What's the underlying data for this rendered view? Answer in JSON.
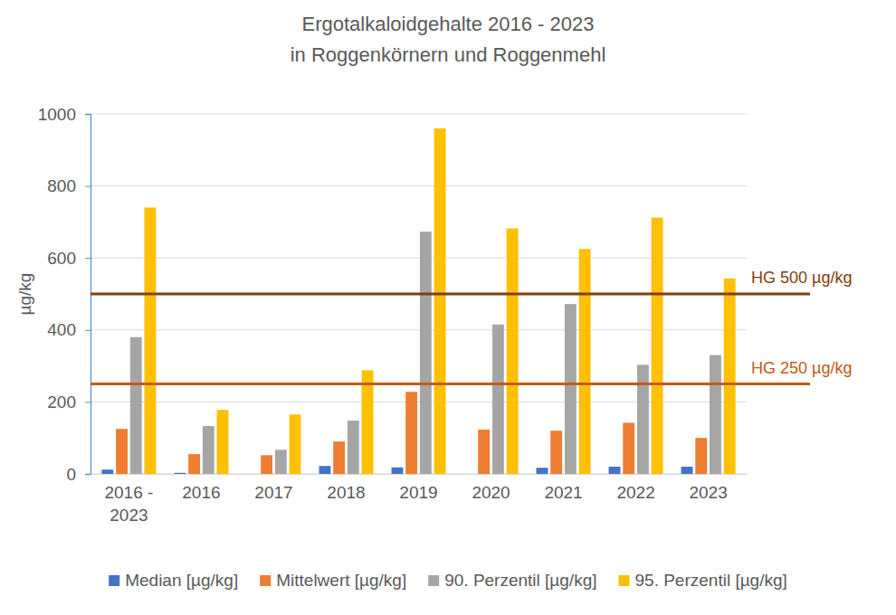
{
  "chart_data": {
    "type": "bar",
    "title": [
      "Ergotalkaloidgehalte 2016 - 2023",
      "in Roggenkörnern und Roggenmehl"
    ],
    "y_label": "µg/kg",
    "categories": [
      "2016 - 2023",
      "2016",
      "2017",
      "2018",
      "2019",
      "2020",
      "2021",
      "2022",
      "2023"
    ],
    "series": [
      {
        "name": "Median [µg/kg]",
        "color": "#4472c4",
        "values": [
          12,
          3,
          0,
          22,
          18,
          0,
          17,
          20,
          20
        ]
      },
      {
        "name": "Mittelwert [µg/kg]",
        "color": "#ed7d31",
        "values": [
          125,
          55,
          52,
          90,
          228,
          123,
          120,
          142,
          100
        ]
      },
      {
        "name": "90. Perzentil [µg/kg]",
        "color": "#a5a5a5",
        "values": [
          380,
          133,
          67,
          148,
          673,
          415,
          472,
          303,
          330
        ]
      },
      {
        "name": "95. Perzentil [µg/kg]",
        "color": "#ffc000",
        "values": [
          740,
          178,
          165,
          288,
          960,
          682,
          625,
          712,
          543
        ]
      }
    ],
    "reference_lines": [
      {
        "value": 500,
        "label": "HG 500 µg/kg",
        "color": "#843c0c"
      },
      {
        "value": 250,
        "label": "HG 250 µg/kg",
        "color": "#c55a11"
      }
    ],
    "ylim": [
      0,
      1000
    ],
    "yticks": [
      0,
      200,
      400,
      600,
      800,
      1000
    ],
    "grid": true,
    "legend": "bottom"
  }
}
